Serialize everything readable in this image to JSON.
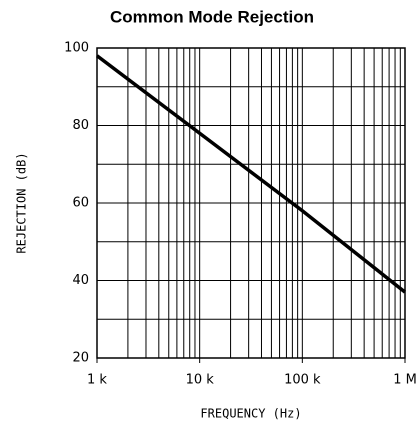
{
  "chart_data": {
    "type": "line",
    "title": "Common Mode Rejection",
    "xlabel": "FREQUENCY (Hz)",
    "ylabel": "REJECTION (dB)",
    "xscale": "log",
    "x": [
      1000,
      10000,
      100000,
      1000000
    ],
    "series": [
      {
        "color": "#000000",
        "values": [
          98,
          78,
          58,
          37
        ]
      }
    ],
    "xlim": [
      1000,
      1000000
    ],
    "xticks": [
      {
        "value": 1000,
        "label": "1 k"
      },
      {
        "value": 10000,
        "label": "10 k"
      },
      {
        "value": 100000,
        "label": "100 k"
      },
      {
        "value": 1000000,
        "label": "1 M"
      }
    ],
    "ylim": [
      20,
      100
    ],
    "yticks": [
      20,
      40,
      60,
      80,
      100
    ],
    "yminor": [
      30,
      50,
      70,
      90
    ],
    "grid": true
  }
}
